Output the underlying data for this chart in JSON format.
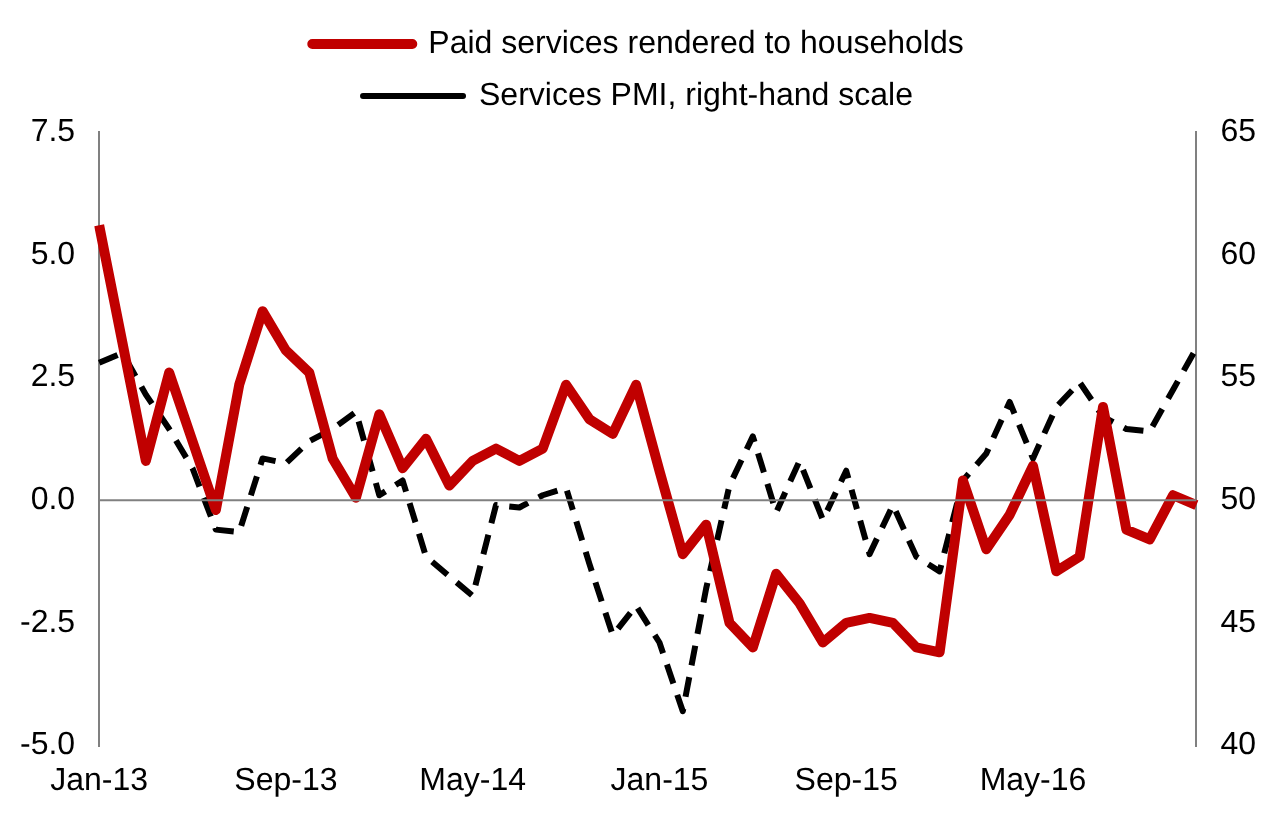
{
  "chart_data": {
    "type": "line",
    "categories": [
      "Jan-13",
      null,
      null,
      null,
      null,
      null,
      null,
      null,
      "Sep-13",
      null,
      null,
      null,
      null,
      null,
      null,
      null,
      "May-14",
      null,
      null,
      null,
      null,
      null,
      null,
      null,
      "Jan-15",
      null,
      null,
      null,
      null,
      null,
      null,
      null,
      "Sep-15",
      null,
      null,
      null,
      null,
      null,
      null,
      null,
      "May-16",
      null,
      null,
      null,
      null,
      null,
      null,
      null
    ],
    "series": [
      {
        "name": "Paid services rendered to households",
        "color": "#c00000",
        "line_style": "solid",
        "values": [
          5.6,
          3.2,
          0.8,
          2.6,
          1.2,
          -0.2,
          2.35,
          3.85,
          3.05,
          2.6,
          0.85,
          0.05,
          1.75,
          0.65,
          1.25,
          0.3,
          0.8,
          1.05,
          0.8,
          1.05,
          2.35,
          1.65,
          1.35,
          2.35,
          0.6,
          -1.1,
          -0.5,
          -2.5,
          -3.0,
          -1.5,
          -2.1,
          -2.9,
          -2.5,
          -2.4,
          -2.5,
          -3.0,
          -3.1,
          0.4,
          -1.0,
          -0.3,
          0.7,
          -1.45,
          -1.15,
          1.9,
          -0.6,
          -0.8,
          0.1,
          -0.1
        ]
      },
      {
        "name": "Services PMI, right-hand scale",
        "color": "#000000",
        "line_style": "dashed",
        "axis": "y2",
        "values": [
          55.6,
          56.0,
          54.3,
          52.9,
          51.3,
          48.8,
          48.7,
          51.7,
          51.5,
          52.4,
          52.9,
          53.6,
          50.2,
          50.8,
          47.7,
          46.9,
          46.1,
          49.8,
          49.7,
          50.2,
          50.5,
          47.4,
          44.5,
          45.7,
          44.2,
          41.4,
          46.4,
          50.6,
          52.6,
          49.5,
          51.6,
          49.2,
          51.2,
          47.8,
          49.8,
          47.7,
          47.1,
          50.8,
          51.9,
          54.0,
          51.7,
          53.8,
          54.8,
          53.4,
          52.9,
          52.8,
          54.5,
          56.2
        ]
      }
    ],
    "ylim": [
      -5,
      7.5
    ],
    "yticks": [
      {
        "value": -5,
        "label": "-5.0"
      },
      {
        "value": -2.5,
        "label": "-2.5"
      },
      {
        "value": 0,
        "label": "0.0"
      },
      {
        "value": 2.5,
        "label": "2.5"
      },
      {
        "value": 5,
        "label": "5.0"
      },
      {
        "value": 7.5,
        "label": "7.5"
      }
    ],
    "y2lim": [
      40,
      65
    ],
    "y2ticks": [
      40,
      45,
      50,
      55,
      60,
      65
    ],
    "ref_lines": [
      {
        "axis": "y",
        "value": 0,
        "color": "#808080"
      }
    ],
    "legend": "top"
  }
}
